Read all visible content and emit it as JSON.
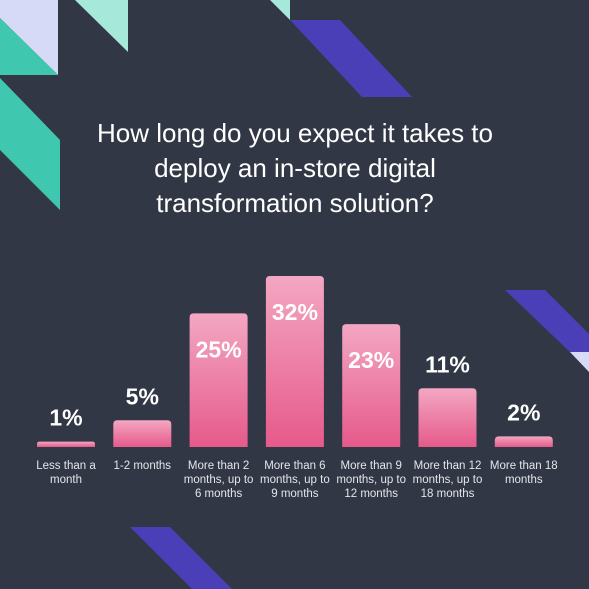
{
  "chart_data": {
    "type": "bar",
    "title": "How long do you expect it takes to deploy an in-store digital transformation solution?",
    "categories": [
      "Less than a month",
      "1-2 months",
      "More than 2 months, up to 6 months",
      "More than 6 months, up to 9 months",
      "More than 9 months, up to 12 months",
      "More than 12 months, up to 18 months",
      "More than 18 months"
    ],
    "values": [
      1,
      5,
      25,
      32,
      23,
      11,
      2
    ],
    "value_labels": [
      "1%",
      "5%",
      "25%",
      "32%",
      "23%",
      "11%",
      "2%"
    ],
    "color": "#ea6a97"
  }
}
